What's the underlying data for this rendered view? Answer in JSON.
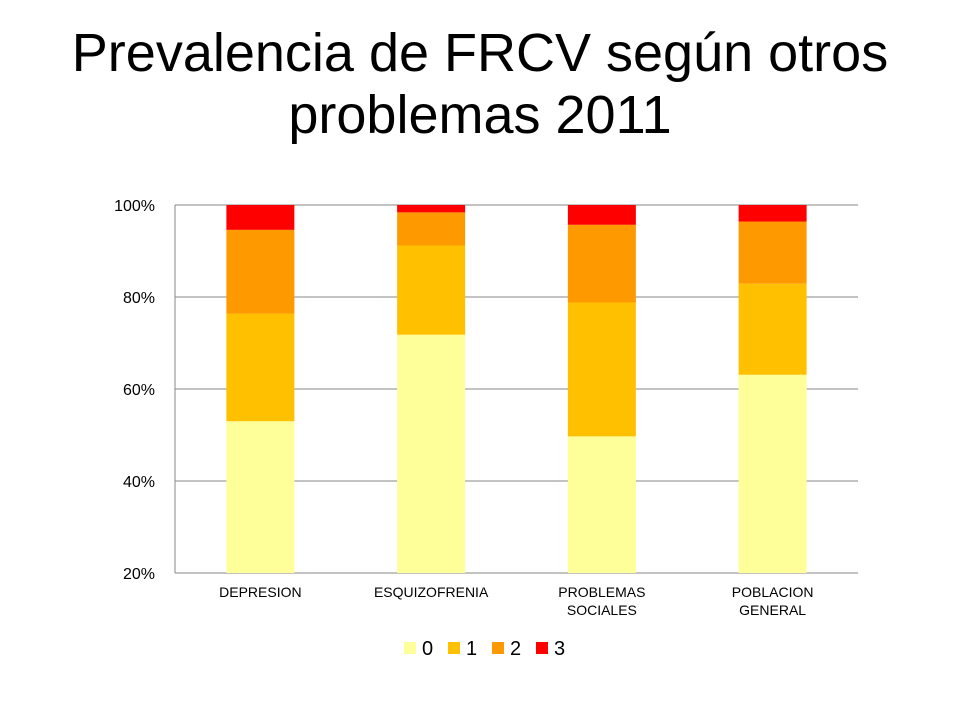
{
  "title": "Prevalencia de FRCV según otros problemas 2011",
  "chart_data": {
    "type": "bar",
    "stacked": "percent",
    "title": "Prevalencia de FRCV según otros problemas 2011",
    "xlabel": "",
    "ylabel": "",
    "ylim": [
      20,
      100
    ],
    "yticks": [
      "20%",
      "40%",
      "60%",
      "80%",
      "100%"
    ],
    "grid": true,
    "legend_position": "bottom",
    "categories": [
      [
        "DEPRESION"
      ],
      [
        "ESQUIZOFRENIA"
      ],
      [
        "PROBLEMAS",
        "SOCIALES"
      ],
      [
        "POBLACION",
        "GENERAL"
      ]
    ],
    "series": [
      {
        "name": "0",
        "color": "#FFFF99",
        "values": [
          53.0,
          71.8,
          49.7,
          63.1
        ]
      },
      {
        "name": "1",
        "color": "#FFC000",
        "values": [
          23.4,
          19.4,
          29.1,
          19.8
        ]
      },
      {
        "name": "2",
        "color": "#FF9900",
        "values": [
          18.2,
          7.2,
          16.9,
          13.5
        ]
      },
      {
        "name": "3",
        "color": "#FF0000",
        "values": [
          5.4,
          1.6,
          4.3,
          3.6
        ]
      }
    ]
  }
}
